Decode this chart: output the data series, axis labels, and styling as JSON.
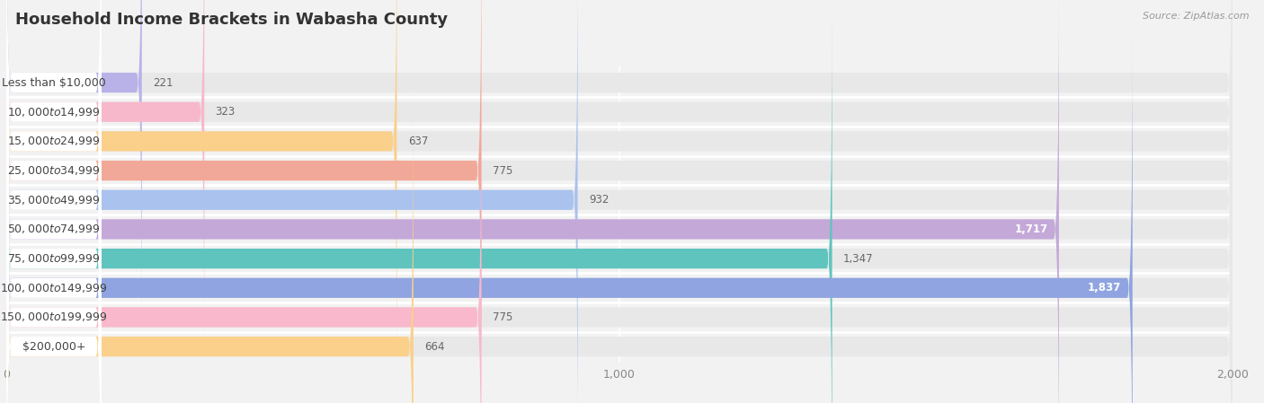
{
  "title": "Household Income Brackets in Wabasha County",
  "source": "Source: ZipAtlas.com",
  "categories": [
    "Less than $10,000",
    "$10,000 to $14,999",
    "$15,000 to $24,999",
    "$25,000 to $34,999",
    "$35,000 to $49,999",
    "$50,000 to $74,999",
    "$75,000 to $99,999",
    "$100,000 to $149,999",
    "$150,000 to $199,999",
    "$200,000+"
  ],
  "values": [
    221,
    323,
    637,
    775,
    932,
    1717,
    1347,
    1837,
    775,
    664
  ],
  "bar_colors": [
    "#b8b2e8",
    "#f7b8cc",
    "#fad08a",
    "#f2a898",
    "#aac2ee",
    "#c4a8d8",
    "#60c4be",
    "#8fa4e0",
    "#f9b8cc",
    "#fad08a"
  ],
  "background_color": "#f2f2f2",
  "bar_bg_color": "#e8e8e8",
  "label_bg_color": "#ffffff",
  "xlim": [
    0,
    2000
  ],
  "xticks": [
    0,
    1000,
    2000
  ],
  "title_fontsize": 13,
  "label_fontsize": 9,
  "value_fontsize": 8.5,
  "value_threshold": 1400
}
